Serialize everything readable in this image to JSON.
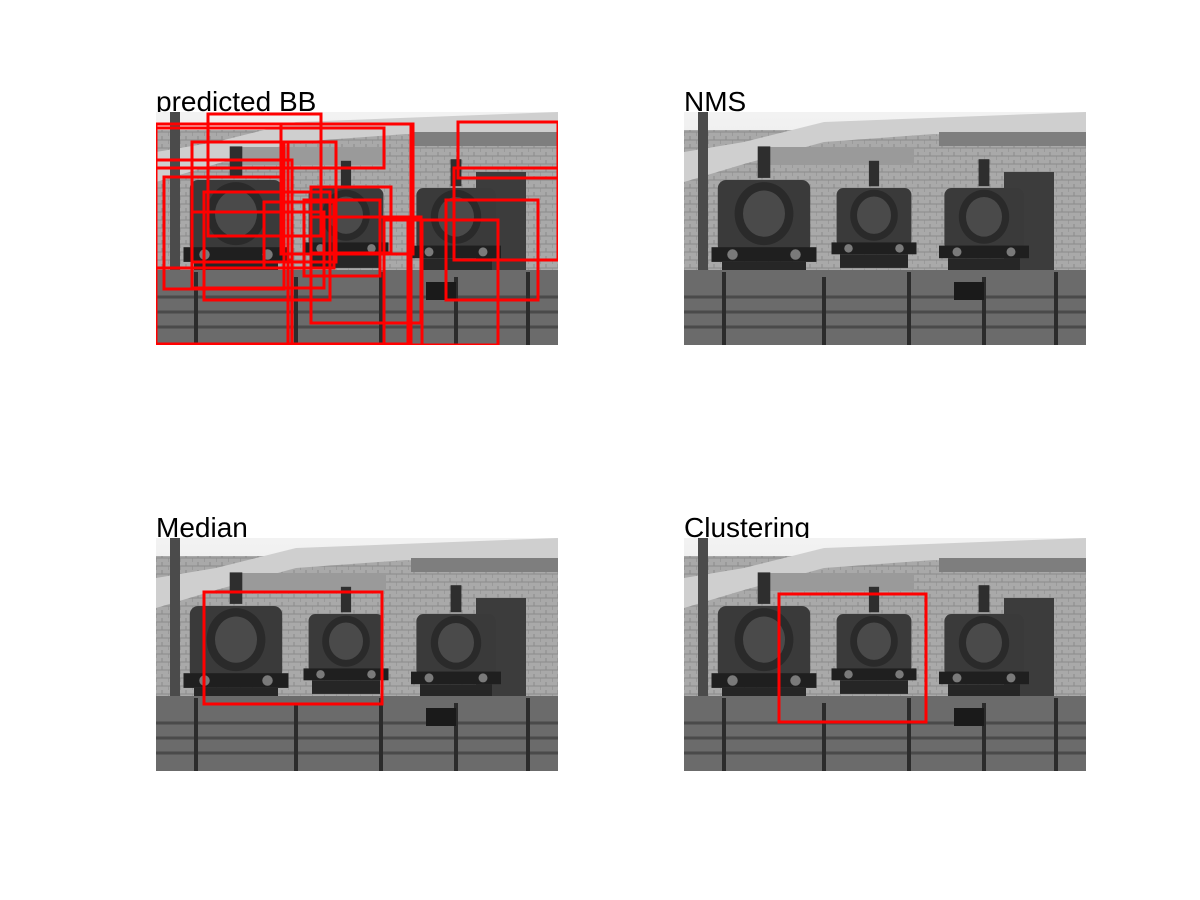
{
  "panels": [
    {
      "title": "predicted BB",
      "box_color": "#ff0000",
      "box_count": 20
    },
    {
      "title": "NMS",
      "box_color": "#ff0000",
      "box_count": 0
    },
    {
      "title": "Median",
      "box_color": "#ff0000",
      "box_count": 1
    },
    {
      "title": "Clustering",
      "box_color": "#ff0000",
      "box_count": 1
    }
  ]
}
